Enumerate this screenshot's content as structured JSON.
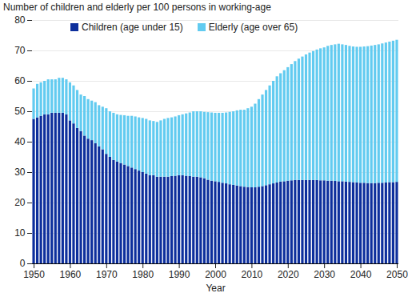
{
  "chart_data": {
    "type": "bar",
    "stacked": true,
    "y_label": "Number of children and elderly per 100 persons in working-age",
    "x_label": "Year",
    "x": [
      1950,
      1951,
      1952,
      1953,
      1954,
      1955,
      1956,
      1957,
      1958,
      1959,
      1960,
      1961,
      1962,
      1963,
      1964,
      1965,
      1966,
      1967,
      1968,
      1969,
      1970,
      1971,
      1972,
      1973,
      1974,
      1975,
      1976,
      1977,
      1978,
      1979,
      1980,
      1981,
      1982,
      1983,
      1984,
      1985,
      1986,
      1987,
      1988,
      1989,
      1990,
      1991,
      1992,
      1993,
      1994,
      1995,
      1996,
      1997,
      1998,
      1999,
      2000,
      2001,
      2002,
      2003,
      2004,
      2005,
      2006,
      2007,
      2008,
      2009,
      2010,
      2011,
      2012,
      2013,
      2014,
      2015,
      2016,
      2017,
      2018,
      2019,
      2020,
      2021,
      2022,
      2023,
      2024,
      2025,
      2026,
      2027,
      2028,
      2029,
      2030,
      2031,
      2032,
      2033,
      2034,
      2035,
      2036,
      2037,
      2038,
      2039,
      2040,
      2041,
      2042,
      2043,
      2044,
      2045,
      2046,
      2047,
      2048,
      2049,
      2050
    ],
    "xticks": [
      1950,
      1960,
      1970,
      1980,
      1990,
      2000,
      2010,
      2020,
      2030,
      2040,
      2050
    ],
    "series": [
      {
        "name": "Children (age under 15)",
        "color": "#0d2f9c",
        "values": [
          47.5,
          48,
          48.5,
          49,
          49,
          49.5,
          49.5,
          49.5,
          49.5,
          49,
          47,
          46,
          44.5,
          43.5,
          42,
          41,
          40.5,
          39.5,
          38.5,
          37.5,
          36,
          35,
          34,
          33.5,
          33,
          32.5,
          32,
          31.5,
          31,
          30.5,
          30,
          29.5,
          29,
          29,
          28.5,
          28.5,
          28.5,
          28.5,
          28.7,
          28.8,
          29,
          29,
          28.8,
          28.7,
          28.5,
          28.5,
          28.3,
          28,
          27.5,
          27.2,
          27,
          26.8,
          26.5,
          26.3,
          26,
          25.8,
          25.6,
          25.4,
          25.2,
          25.1,
          25,
          25,
          25.2,
          25.4,
          25.7,
          26,
          26.3,
          26.6,
          26.9,
          27,
          27.2,
          27.3,
          27.4,
          27.4,
          27.4,
          27.4,
          27.4,
          27.4,
          27.4,
          27.3,
          27.3,
          27.2,
          27.2,
          27.1,
          27,
          27,
          26.9,
          26.8,
          26.7,
          26.6,
          26.5,
          26.5,
          26.4,
          26.4,
          26.4,
          26.5,
          26.5,
          26.6,
          26.7,
          26.7,
          26.8
        ]
      },
      {
        "name": "Elderly (age over 65)",
        "color": "#62cbf0",
        "values": [
          10,
          11,
          11,
          11,
          11.5,
          11,
          11,
          11.5,
          11.5,
          11.5,
          12.5,
          12.5,
          12.5,
          12,
          13,
          13,
          13,
          13.5,
          13.5,
          14,
          15,
          15,
          15.5,
          15.5,
          15.8,
          16.2,
          16.5,
          17,
          17.3,
          17.5,
          17.8,
          18,
          18,
          17.8,
          18,
          18.5,
          19,
          19.3,
          19.3,
          19.5,
          19.7,
          20,
          20.5,
          20.9,
          21.5,
          21.5,
          21.7,
          21.8,
          22.2,
          22.4,
          22.5,
          22.7,
          23,
          23.3,
          23.8,
          24.2,
          24.7,
          25.1,
          25.3,
          25.9,
          26.5,
          27.5,
          28.8,
          30.1,
          31.3,
          32.5,
          33.7,
          34.9,
          35.6,
          36.5,
          37.3,
          38.2,
          39.1,
          39.9,
          40.6,
          41.3,
          41.9,
          42.4,
          42.9,
          43.4,
          43.7,
          44.3,
          44.6,
          44.9,
          45.2,
          45,
          44.9,
          44.7,
          44.6,
          44.6,
          44.7,
          44.8,
          45,
          45.2,
          45.4,
          45.5,
          45.8,
          46,
          46.2,
          46.5,
          46.7
        ]
      }
    ],
    "ylim": [
      0,
      80
    ],
    "yticks": [
      0,
      10,
      20,
      30,
      40,
      50,
      60,
      70,
      80
    ],
    "grid": true,
    "legend": "top"
  }
}
